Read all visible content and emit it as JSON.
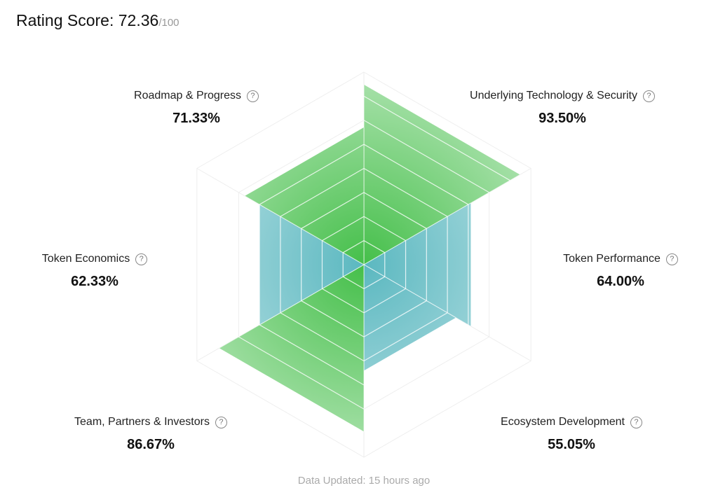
{
  "header": {
    "label": "Rating Score: ",
    "score": "72.36",
    "max": "/100"
  },
  "chart_data": {
    "type": "radar",
    "range": [
      0,
      100
    ],
    "series": [
      {
        "name": "Underlying Technology & Security",
        "value": 93.5,
        "display": "93.50%",
        "color": "#45bf4a"
      },
      {
        "name": "Token Performance",
        "value": 64.0,
        "display": "64.00%",
        "color": "#5bb8c0"
      },
      {
        "name": "Ecosystem Development",
        "value": 55.05,
        "display": "55.05%",
        "color": "#5bb8c0"
      },
      {
        "name": "Team, Partners & Investors",
        "value": 86.67,
        "display": "86.67%",
        "color": "#45bf4a"
      },
      {
        "name": "Token Economics",
        "value": 62.33,
        "display": "62.33%",
        "color": "#5bb8c0"
      },
      {
        "name": "Roadmap & Progress",
        "value": 71.33,
        "display": "71.33%",
        "color": "#45bf4a"
      }
    ]
  },
  "help_icon": "?",
  "footer": "Data Updated: 15 hours ago"
}
